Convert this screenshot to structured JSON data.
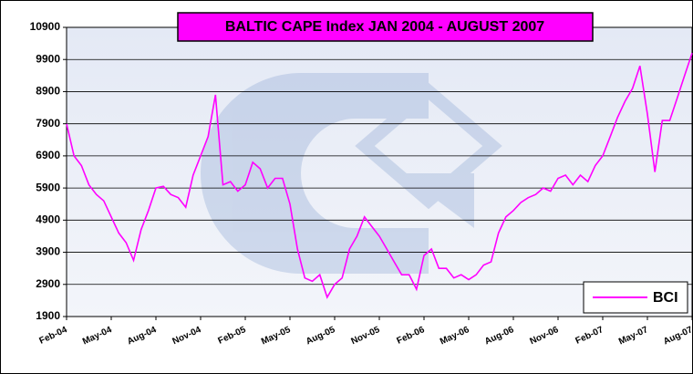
{
  "chart_data": {
    "type": "line",
    "title": "BALTIC CAPE Index JAN 2004 - AUGUST 2007",
    "categories": [
      "Feb-04",
      null,
      null,
      null,
      null,
      null,
      "May-04",
      null,
      null,
      null,
      null,
      null,
      "Aug-04",
      null,
      null,
      null,
      null,
      null,
      "Nov-04",
      null,
      null,
      null,
      null,
      null,
      "Feb-05",
      null,
      null,
      null,
      null,
      null,
      "May-05",
      null,
      null,
      null,
      null,
      null,
      "Aug-05",
      null,
      null,
      null,
      null,
      null,
      "Nov-05",
      null,
      null,
      null,
      null,
      null,
      "Feb-06",
      null,
      null,
      null,
      null,
      null,
      "May-06",
      null,
      null,
      null,
      null,
      null,
      "Aug-06",
      null,
      null,
      null,
      null,
      null,
      "Nov-06",
      null,
      null,
      null,
      null,
      null,
      "Feb-07",
      null,
      null,
      null,
      null,
      null,
      "May-07",
      null,
      null,
      null,
      null,
      null,
      "Aug-07"
    ],
    "series": [
      {
        "name": "BCI",
        "color": "#ff00ff",
        "values": [
          7900,
          6900,
          6600,
          6000,
          5700,
          5500,
          5000,
          4500,
          4200,
          3650,
          4600,
          5200,
          5900,
          5950,
          5700,
          5600,
          5300,
          6300,
          6900,
          7500,
          8800,
          6000,
          6100,
          5800,
          6000,
          6700,
          6500,
          5900,
          6200,
          6200,
          5400,
          4000,
          3100,
          3000,
          3200,
          2500,
          2900,
          3100,
          4000,
          4400,
          5000,
          4700,
          4400,
          4000,
          3600,
          3200,
          3200,
          2750,
          3800,
          4000,
          3400,
          3400,
          3100,
          3200,
          3050,
          3200,
          3500,
          3600,
          4500,
          5000,
          5200,
          5450,
          5600,
          5700,
          5900,
          5800,
          6200,
          6300,
          6000,
          6300,
          6100,
          6600,
          6900,
          7500,
          8100,
          8600,
          9000,
          9700,
          8200,
          6400,
          8000,
          8000,
          8700,
          9400,
          10100
        ]
      }
    ],
    "ylim": [
      1900,
      10900
    ],
    "yticks": [
      1900,
      2900,
      3900,
      4900,
      5900,
      6900,
      7900,
      8900,
      9900,
      10900
    ],
    "grid": true,
    "legend": "bottom-right"
  }
}
